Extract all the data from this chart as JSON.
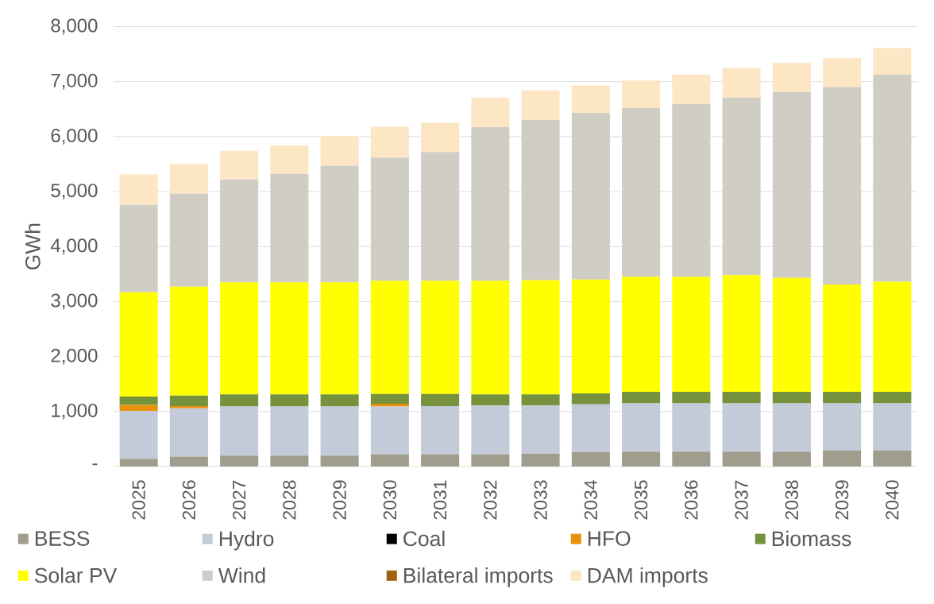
{
  "chart_data": {
    "type": "bar",
    "stacked": true,
    "ylabel": "GWh",
    "categories": [
      "2025",
      "2026",
      "2027",
      "2028",
      "2029",
      "2030",
      "2031",
      "2032",
      "2033",
      "2034",
      "2035",
      "2036",
      "2037",
      "2038",
      "2039",
      "2040"
    ],
    "ylim": [
      0,
      8000
    ],
    "yticks": [
      {
        "value": 0,
        "label": "-"
      },
      {
        "value": 1000,
        "label": "1,000"
      },
      {
        "value": 2000,
        "label": "2,000"
      },
      {
        "value": 3000,
        "label": "3,000"
      },
      {
        "value": 4000,
        "label": "4,000"
      },
      {
        "value": 5000,
        "label": "5,000"
      },
      {
        "value": 6000,
        "label": "6,000"
      },
      {
        "value": 7000,
        "label": "7,000"
      },
      {
        "value": 8000,
        "label": "8,000"
      }
    ],
    "grid": "y",
    "legend": "bottom",
    "series": [
      {
        "name": "BESS",
        "color": "#a09d8c",
        "values": [
          140,
          180,
          200,
          200,
          200,
          220,
          220,
          220,
          230,
          260,
          270,
          270,
          270,
          270,
          290,
          290
        ]
      },
      {
        "name": "Hydro",
        "color": "#c3cad8",
        "values": [
          870,
          880,
          890,
          890,
          890,
          870,
          880,
          890,
          880,
          870,
          880,
          880,
          880,
          880,
          860,
          860
        ]
      },
      {
        "name": "Coal",
        "color": "#000000",
        "values": [
          0,
          0,
          0,
          0,
          0,
          0,
          0,
          0,
          0,
          0,
          0,
          0,
          0,
          0,
          0,
          0
        ]
      },
      {
        "name": "HFO",
        "color": "#e8920c",
        "values": [
          110,
          40,
          0,
          0,
          0,
          50,
          0,
          0,
          0,
          0,
          0,
          0,
          0,
          0,
          0,
          0
        ]
      },
      {
        "name": "Biomass",
        "color": "#76923c",
        "values": [
          150,
          190,
          220,
          220,
          220,
          180,
          220,
          200,
          200,
          200,
          210,
          210,
          210,
          210,
          210,
          210
        ]
      },
      {
        "name": "Solar PV",
        "color": "#ffff00",
        "values": [
          1900,
          1980,
          2040,
          2040,
          2040,
          2060,
          2060,
          2070,
          2080,
          2070,
          2090,
          2090,
          2120,
          2070,
          1950,
          2000
        ]
      },
      {
        "name": "Wind",
        "color": "#d0cdc5",
        "values": [
          1590,
          1690,
          1870,
          1970,
          2120,
          2240,
          2340,
          2790,
          2910,
          3030,
          3070,
          3140,
          3230,
          3380,
          3590,
          3770
        ]
      },
      {
        "name": "Bilateral imports",
        "color": "#a0620e",
        "values": [
          0,
          0,
          0,
          0,
          0,
          0,
          0,
          0,
          0,
          0,
          0,
          0,
          0,
          0,
          0,
          0
        ]
      },
      {
        "name": "DAM imports",
        "color": "#fde6c4",
        "values": [
          550,
          540,
          520,
          520,
          540,
          560,
          530,
          540,
          540,
          500,
          500,
          540,
          540,
          530,
          530,
          480
        ]
      }
    ]
  }
}
